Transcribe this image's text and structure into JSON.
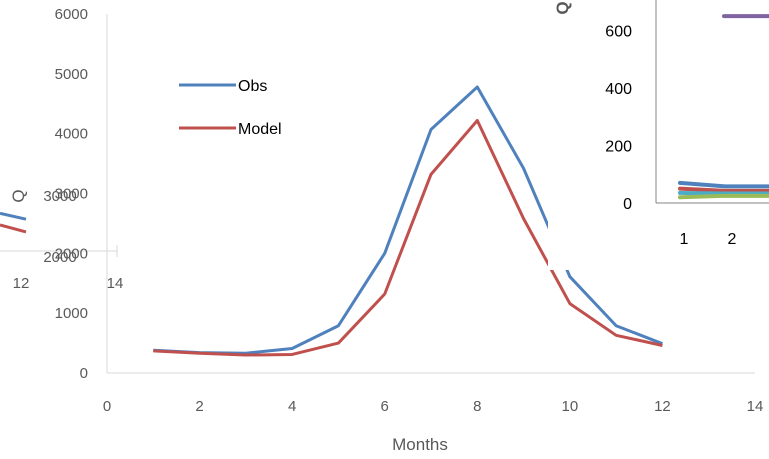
{
  "chart_data": [
    {
      "type": "line",
      "xlabel": "Months",
      "ylabel": "Q",
      "xlim": [
        0,
        14
      ],
      "ylim": [
        0,
        6000
      ],
      "x_ticks": [
        "0",
        "2",
        "4",
        "6",
        "8",
        "10",
        "12",
        "14"
      ],
      "y_ticks": [
        "0",
        "1000",
        "2000",
        "3000",
        "4000",
        "5000",
        "6000"
      ],
      "legend_position": "top-left",
      "x": [
        1,
        2,
        3,
        4,
        5,
        6,
        7,
        8,
        9,
        10,
        11,
        12
      ],
      "series": [
        {
          "name": "Obs",
          "color": "#4f81bd",
          "values": [
            380,
            340,
            330,
            410,
            790,
            2000,
            4070,
            4780,
            3420,
            1610,
            790,
            490
          ]
        },
        {
          "name": "Model",
          "color": "#c0504d",
          "values": [
            370,
            330,
            300,
            310,
            500,
            1320,
            3320,
            4220,
            2580,
            1160,
            630,
            460
          ]
        }
      ]
    },
    {
      "type": "line",
      "ylabel": "Q",
      "y_ticks": [
        "0",
        "200",
        "400",
        "600"
      ],
      "x_ticks": [
        "1",
        "2"
      ],
      "series": [
        {
          "color": "#8064a2",
          "values": [
            null,
            650
          ]
        },
        {
          "color": "#4f81bd",
          "values": [
            70,
            58
          ]
        },
        {
          "color": "#c0504d",
          "values": [
            50,
            42
          ]
        },
        {
          "color": "#4bacc6",
          "values": [
            35,
            33
          ]
        },
        {
          "color": "#9bbb59",
          "values": [
            20,
            25
          ]
        }
      ]
    },
    {
      "type": "line",
      "note_ylabel": "Q",
      "y_ticks": [
        "3000",
        "2000"
      ],
      "x_ticks": [
        "12",
        "14"
      ],
      "series": [
        {
          "color": "#4f81bd",
          "values": [
            2700,
            2600
          ]
        },
        {
          "color": "#c0504d",
          "values": [
            2500,
            2380
          ]
        }
      ]
    }
  ]
}
